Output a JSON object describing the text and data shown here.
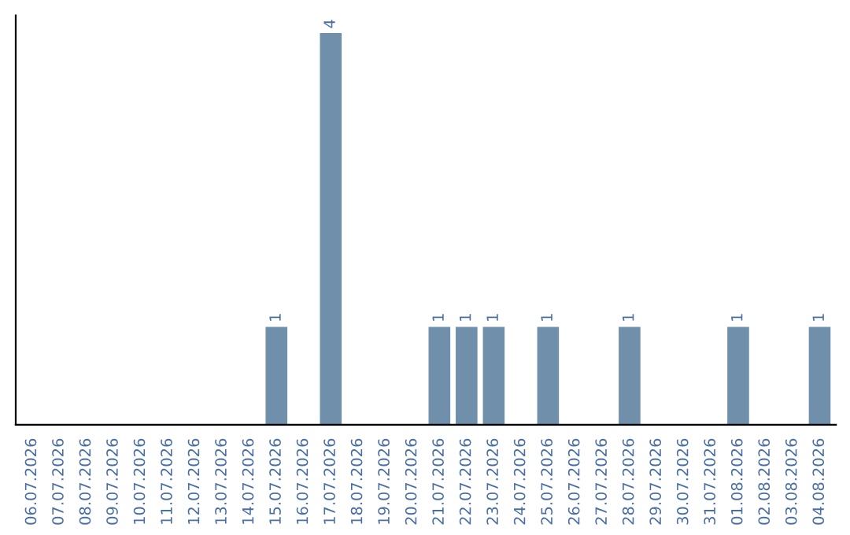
{
  "chart_data": {
    "type": "bar",
    "categories": [
      "06.07.2026",
      "07.07.2026",
      "08.07.2026",
      "09.07.2026",
      "10.07.2026",
      "11.07.2026",
      "12.07.2026",
      "13.07.2026",
      "14.07.2026",
      "15.07.2026",
      "16.07.2026",
      "17.07.2026",
      "18.07.2026",
      "19.07.2026",
      "20.07.2026",
      "21.07.2026",
      "22.07.2026",
      "23.07.2026",
      "24.07.2026",
      "25.07.2026",
      "26.07.2026",
      "27.07.2026",
      "28.07.2026",
      "29.07.2026",
      "30.07.2026",
      "31.07.2026",
      "01.08.2026",
      "02.08.2026",
      "03.08.2026",
      "04.08.2026"
    ],
    "values": [
      0,
      0,
      0,
      0,
      0,
      0,
      0,
      0,
      0,
      1,
      0,
      4,
      0,
      0,
      0,
      1,
      1,
      1,
      0,
      1,
      0,
      0,
      1,
      0,
      0,
      0,
      1,
      0,
      0,
      1
    ],
    "value_labels": [
      null,
      null,
      null,
      null,
      null,
      null,
      null,
      null,
      null,
      "1",
      null,
      "4",
      null,
      null,
      null,
      "1",
      "1",
      "1",
      null,
      "1",
      null,
      null,
      "1",
      null,
      null,
      null,
      "1",
      null,
      null,
      "1"
    ],
    "color": "#6f8fab",
    "grid": false,
    "legend": false,
    "tick_labels": "x"
  }
}
